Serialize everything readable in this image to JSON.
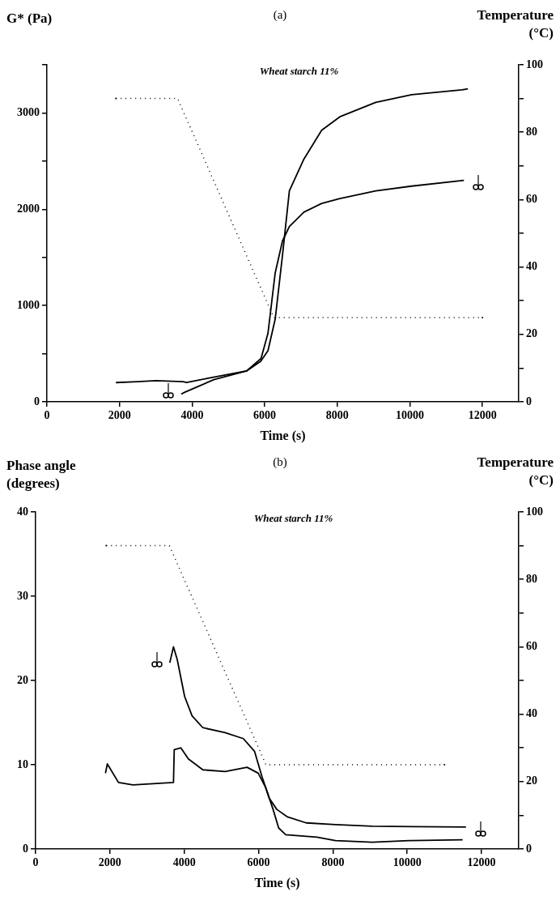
{
  "chart_data": [
    {
      "type": "line",
      "title": "(a)",
      "subtitle": "Wheat starch 11%",
      "xlabel": "Time (s)",
      "ylabel": "G* (Pa)",
      "y2label": "Temperature (°C)",
      "grid": false,
      "legend": false,
      "marker": "none",
      "xlim": [
        0,
        13000
      ],
      "xticks": [
        0,
        2000,
        4000,
        6000,
        8000,
        10000,
        12000
      ],
      "ylim": [
        0,
        3500
      ],
      "yticks": [
        0,
        {
          "value": 500,
          "label": null
        },
        1000,
        {
          "value": 1500,
          "label": null
        },
        2000,
        {
          "value": 2500,
          "label": null
        },
        3000,
        {
          "value": 3500,
          "label": null
        }
      ],
      "y2lim": [
        0,
        100
      ],
      "y2ticks": [
        0,
        {
          "value": 10,
          "label": null
        },
        20,
        {
          "value": 30,
          "label": null
        },
        40,
        {
          "value": 50,
          "label": null
        },
        60,
        {
          "value": 70,
          "label": null
        },
        80,
        {
          "value": 90,
          "label": null
        },
        100
      ],
      "series": [
        {
          "color": "#000000",
          "line_style": "solid",
          "x": [
            3700,
            3800,
            4600,
            5500,
            5900,
            6090,
            6290,
            6490,
            6680,
            7080,
            7570,
            8070,
            9060,
            10050,
            11490
          ],
          "values": [
            80,
            100,
            230,
            320,
            450,
            710,
            1340,
            1670,
            1820,
            1970,
            2060,
            2110,
            2190,
            2240,
            2300
          ]
        },
        {
          "color": "#000000",
          "line_style": "solid",
          "x": [
            1900,
            2500,
            3000,
            3750,
            3850,
            4500,
            5500,
            5890,
            6090,
            6290,
            6490,
            6680,
            7080,
            7570,
            8070,
            9060,
            10050,
            11440,
            11600
          ],
          "values": [
            200,
            210,
            220,
            210,
            200,
            250,
            320,
            420,
            530,
            860,
            1520,
            2190,
            2520,
            2820,
            2960,
            3110,
            3190,
            3240,
            3250
          ]
        },
        {
          "color": "#000000",
          "line_style": "dotted",
          "axis": "y2",
          "x": [
            1900,
            3600,
            6250,
            12000
          ],
          "values": [
            90,
            90,
            25,
            25
          ]
        }
      ]
    },
    {
      "type": "line",
      "title": "(b)",
      "subtitle": "Wheat starch 11%",
      "xlabel": "Time (s)",
      "ylabel": "Phase angle (degrees)",
      "y2label": "Temperature (°C)",
      "grid": false,
      "legend": false,
      "marker": "none",
      "xlim": [
        0,
        13000
      ],
      "xticks": [
        0,
        2000,
        4000,
        6000,
        8000,
        10000,
        12000
      ],
      "ylim": [
        0,
        40
      ],
      "yticks": [
        0,
        10,
        20,
        30,
        40
      ],
      "y2lim": [
        0,
        100
      ],
      "y2ticks": [
        0,
        {
          "value": 10,
          "label": null
        },
        20,
        {
          "value": 30,
          "label": null
        },
        40,
        {
          "value": 50,
          "label": null
        },
        60,
        {
          "value": 70,
          "label": null
        },
        80,
        {
          "value": 90,
          "label": null
        },
        100
      ],
      "series": [
        {
          "color": "#000000",
          "line_style": "solid",
          "x": [
            3610,
            3710,
            3810,
            4010,
            4210,
            4500,
            5100,
            5590,
            5890,
            6090,
            6290,
            6490,
            6780,
            7280,
            8070,
            9060,
            11580
          ],
          "values": [
            22.1,
            24,
            22.5,
            18.1,
            15.8,
            14.4,
            13.8,
            13.1,
            11.6,
            8.6,
            6.0,
            4.7,
            3.8,
            3.1,
            2.9,
            2.7,
            2.6
          ]
        },
        {
          "color": "#000000",
          "line_style": "solid",
          "x": [
            1880,
            1930,
            2230,
            2620,
            3710,
            3730,
            3910,
            4110,
            4500,
            5100,
            5690,
            5990,
            6190,
            6390,
            6540,
            6730,
            7570,
            8070,
            9060,
            10050,
            11490
          ],
          "values": [
            9,
            10.1,
            7.9,
            7.6,
            7.9,
            11.8,
            12.0,
            10.7,
            9.4,
            9.2,
            9.7,
            9.0,
            7.3,
            4.7,
            2.5,
            1.7,
            1.4,
            1.0,
            0.8,
            1.0,
            1.1
          ]
        },
        {
          "color": "#000000",
          "line_style": "dotted",
          "axis": "y2",
          "x": [
            1900,
            3600,
            6200,
            11000
          ],
          "values": [
            90,
            90,
            25,
            25
          ]
        }
      ]
    }
  ]
}
